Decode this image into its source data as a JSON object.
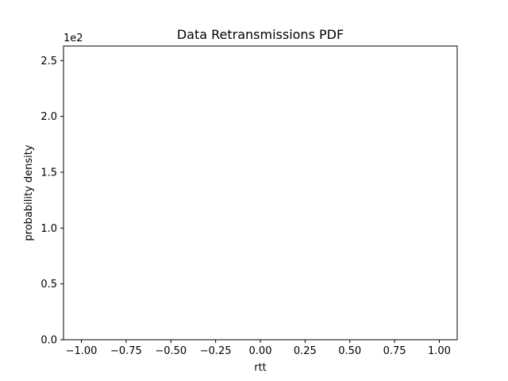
{
  "chart_data": {
    "type": "histogram",
    "title": "Data Retransmissions PDF",
    "xlabel": "rtt",
    "ylabel": "probability density",
    "offset_label": "1e2",
    "xlim": [
      -1.1,
      1.1
    ],
    "ylim": [
      0,
      2.63
    ],
    "x_ticks": [
      -1.0,
      -0.75,
      -0.5,
      -0.25,
      0.0,
      0.25,
      0.5,
      0.75,
      1.0
    ],
    "x_tick_labels": [
      "−1.00",
      "−0.75",
      "−0.50",
      "−0.25",
      "0.00",
      "0.25",
      "0.50",
      "0.75",
      "1.00"
    ],
    "y_ticks": [
      0.0,
      0.5,
      1.0,
      1.5,
      2.0,
      2.5
    ],
    "y_tick_labels": [
      "0.0",
      "0.5",
      "1.0",
      "1.5",
      "2.0",
      "2.5"
    ],
    "series": [],
    "grid": false,
    "legend": "none"
  }
}
